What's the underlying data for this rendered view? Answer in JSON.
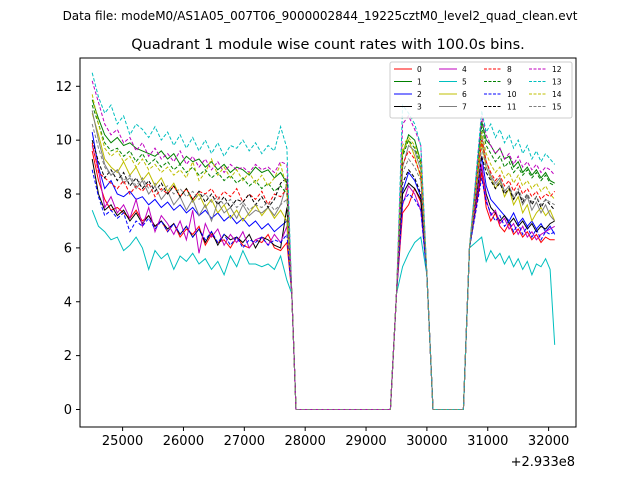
{
  "figure": {
    "suptitle": "Data file: modeM0/AS1A05_007T06_9000002844_19225cztM0_level2_quad_clean.evt"
  },
  "chart_data": {
    "type": "line",
    "title": "Quadrant 1 module wise count rates with 100.0s bins.",
    "xlabel": "",
    "ylabel": "",
    "x_offset_label": "+2.933e8",
    "xlim": [
      24300,
      32450
    ],
    "ylim": [
      -0.65,
      13.05
    ],
    "xticks": [
      25000,
      26000,
      27000,
      28000,
      29000,
      30000,
      31000,
      32000
    ],
    "yticks": [
      0,
      2,
      4,
      6,
      8,
      10,
      12
    ],
    "legend_position": "upper-right",
    "legend_columns": 4,
    "grid": false,
    "series": [
      {
        "name": "0",
        "color": "#ff0000",
        "dash": "solid",
        "seg1": [
          9.6,
          8.5,
          7.8,
          7.4,
          7.5,
          7.3,
          7.1,
          7.4,
          7.0,
          7.2,
          6.8,
          7.0,
          6.6,
          6.9,
          6.4,
          6.7,
          6.5,
          6.8,
          6.1,
          6.5,
          6.2,
          6.3,
          6.0,
          6.4,
          6.1,
          6.0,
          6.3,
          6.2,
          6.5,
          6.0,
          5.9,
          6.2
        ],
        "gap1": [
          7.3,
          7.6,
          8.2,
          7.7
        ],
        "gap2": [
          8.8,
          7.5,
          7.0,
          7.3,
          6.8,
          6.6,
          6.9,
          6.5,
          6.7,
          6.4,
          6.6,
          6.3,
          6.5,
          6.2,
          6.4,
          6.3,
          6.3
        ]
      },
      {
        "name": "1",
        "color": "#008000",
        "dash": "solid",
        "seg1": [
          11.5,
          10.8,
          10.2,
          9.9,
          10.1,
          9.8,
          9.9,
          9.7,
          9.6,
          9.5,
          9.4,
          9.6,
          9.3,
          9.5,
          9.1,
          9.4,
          9.2,
          9.3,
          9.0,
          9.2,
          8.9,
          9.1,
          8.8,
          9.0,
          8.9,
          8.7,
          9.0,
          8.8,
          8.9,
          8.6,
          8.8,
          8.4
        ],
        "gap1": [
          9.5,
          10.2,
          10.0,
          9.2
        ],
        "gap2": [
          10.7,
          10.0,
          9.8,
          9.5,
          9.7,
          9.3,
          9.4,
          9.0,
          9.2,
          8.8,
          9.0,
          8.7,
          8.9,
          8.6,
          8.8,
          8.5,
          8.4
        ]
      },
      {
        "name": "2",
        "color": "#0000ff",
        "dash": "solid",
        "seg1": [
          10.3,
          9.0,
          8.2,
          8.5,
          8.0,
          7.9,
          8.1,
          7.8,
          7.9,
          7.6,
          7.8,
          7.5,
          7.7,
          7.4,
          7.6,
          7.3,
          7.5,
          7.2,
          7.4,
          7.1,
          7.3,
          7.0,
          7.2,
          6.9,
          7.1,
          6.8,
          7.0,
          6.7,
          6.9,
          6.6,
          6.8,
          7.0
        ],
        "gap1": [
          8.1,
          8.8,
          8.5,
          7.9
        ],
        "gap2": [
          9.4,
          8.3,
          7.8,
          7.6,
          7.4,
          7.2,
          7.0,
          7.3,
          6.9,
          7.1,
          6.8,
          7.0,
          6.7,
          6.9,
          6.6,
          6.8,
          6.5
        ]
      },
      {
        "name": "3",
        "color": "#000000",
        "dash": "solid",
        "seg1": [
          9.3,
          8.0,
          7.4,
          7.6,
          7.2,
          7.4,
          7.0,
          7.3,
          6.9,
          7.2,
          6.8,
          7.0,
          6.7,
          6.9,
          6.5,
          6.8,
          6.4,
          6.7,
          6.2,
          6.6,
          6.1,
          6.5,
          6.3,
          6.4,
          6.2,
          6.5,
          6.0,
          6.4,
          6.3,
          6.1,
          6.0,
          7.5
        ],
        "gap1": [
          8.0,
          8.4,
          8.2,
          7.8
        ],
        "gap2": [
          9.0,
          8.0,
          7.5,
          7.3,
          7.0,
          7.2,
          6.9,
          7.1,
          6.8,
          7.0,
          6.7,
          6.9,
          6.6,
          6.8,
          6.7,
          6.9,
          7.0
        ]
      },
      {
        "name": "4",
        "color": "#bf00bf",
        "dash": "solid",
        "seg1": [
          9.8,
          8.9,
          7.5,
          7.9,
          7.3,
          7.6,
          7.1,
          7.8,
          6.8,
          7.5,
          6.6,
          7.2,
          6.9,
          6.5,
          7.0,
          6.3,
          7.4,
          5.8,
          6.9,
          6.4,
          6.7,
          6.1,
          6.5,
          6.2,
          6.6,
          6.0,
          6.3,
          6.4,
          6.1,
          6.5,
          6.2,
          6.8
        ],
        "gap1": [
          7.6,
          8.3,
          8.0,
          7.4
        ],
        "gap2": [
          9.1,
          7.8,
          7.2,
          7.4,
          6.9,
          7.1,
          6.7,
          6.9,
          6.5,
          6.8,
          6.4,
          6.6,
          6.3,
          6.5,
          6.6,
          6.7,
          6.8
        ]
      },
      {
        "name": "5",
        "color": "#00bfbf",
        "dash": "solid",
        "seg1": [
          7.4,
          6.8,
          6.6,
          6.3,
          6.4,
          5.9,
          6.1,
          6.4,
          6.0,
          5.2,
          5.9,
          5.6,
          5.8,
          5.2,
          5.7,
          5.5,
          5.8,
          5.4,
          5.6,
          5.2,
          5.5,
          5.0,
          5.7,
          5.3,
          5.9,
          5.4,
          5.4,
          5.3,
          5.4,
          5.2,
          5.7,
          4.8
        ],
        "gap1": [
          5.3,
          5.8,
          6.2,
          6.4
        ],
        "gap2": [
          6.4,
          5.5,
          5.9,
          5.6,
          5.8,
          5.4,
          5.7,
          5.3,
          5.6,
          5.2,
          5.5,
          5.0,
          5.4,
          5.3,
          5.6,
          5.2,
          2.4
        ]
      },
      {
        "name": "6",
        "color": "#bfbf00",
        "dash": "solid",
        "seg1": [
          11.0,
          10.2,
          9.3,
          9.0,
          8.8,
          9.2,
          8.7,
          9.0,
          8.5,
          8.8,
          8.3,
          8.6,
          8.1,
          8.4,
          7.9,
          8.2,
          7.7,
          8.0,
          7.5,
          7.8,
          7.3,
          7.6,
          7.1,
          7.4,
          7.0,
          7.3,
          7.6,
          7.2,
          7.5,
          7.1,
          7.4,
          7.0
        ],
        "gap1": [
          9.6,
          10.0,
          9.4,
          8.6
        ],
        "gap2": [
          9.9,
          9.0,
          8.6,
          8.2,
          8.5,
          7.9,
          8.2,
          7.6,
          7.9,
          7.3,
          7.6,
          7.0,
          7.3,
          7.5,
          7.2,
          7.4,
          7.0
        ]
      },
      {
        "name": "7",
        "color": "#7f7f7f",
        "dash": "solid",
        "seg1": [
          11.1,
          10.0,
          9.1,
          8.7,
          8.9,
          8.4,
          8.6,
          8.2,
          8.5,
          8.0,
          8.3,
          7.8,
          8.1,
          7.6,
          7.9,
          7.4,
          7.8,
          7.2,
          7.6,
          7.0,
          7.7,
          7.3,
          7.5,
          7.1,
          7.6,
          7.2,
          7.4,
          7.3,
          7.5,
          7.2,
          7.6,
          8.4
        ],
        "gap1": [
          9.0,
          9.8,
          9.6,
          8.9
        ],
        "gap2": [
          10.2,
          9.2,
          8.7,
          8.4,
          8.6,
          8.1,
          8.3,
          7.8,
          8.1,
          7.6,
          7.9,
          7.4,
          7.7,
          7.3,
          7.6,
          7.2,
          7.0
        ]
      },
      {
        "name": "8",
        "color": "#ff0000",
        "dash": "dashed",
        "seg1": [
          9.9,
          8.8,
          8.6,
          8.4,
          8.2,
          8.5,
          8.0,
          8.3,
          8.1,
          8.4,
          7.9,
          8.2,
          8.0,
          8.3,
          7.9,
          8.2,
          7.8,
          8.1,
          8.0,
          8.2,
          7.8,
          8.1,
          7.9,
          8.2,
          7.7,
          8.0,
          7.8,
          8.1,
          7.6,
          8.0,
          7.9,
          8.2
        ],
        "gap1": [
          9.1,
          9.6,
          9.3,
          8.7
        ],
        "gap2": [
          10.0,
          9.2,
          8.8,
          8.5,
          8.7,
          8.3,
          8.5,
          8.1,
          8.4,
          8.0,
          8.2,
          7.9,
          8.1,
          7.8,
          8.0,
          7.9,
          8.1
        ]
      },
      {
        "name": "9",
        "color": "#008000",
        "dash": "dashed",
        "seg1": [
          11.3,
          10.6,
          9.9,
          9.6,
          9.7,
          9.4,
          9.6,
          9.2,
          9.5,
          9.1,
          9.3,
          9.0,
          9.2,
          8.9,
          9.1,
          8.8,
          9.0,
          8.7,
          8.9,
          8.6,
          8.8,
          8.5,
          8.7,
          8.4,
          8.6,
          8.3,
          8.5,
          8.2,
          8.4,
          8.1,
          8.3,
          8.0
        ],
        "gap1": [
          9.4,
          10.0,
          9.7,
          9.1
        ],
        "gap2": [
          10.5,
          9.8,
          9.5,
          9.2,
          9.4,
          9.0,
          9.2,
          8.8,
          9.0,
          8.7,
          8.9,
          8.6,
          8.8,
          8.5,
          8.7,
          8.4,
          8.3
        ]
      },
      {
        "name": "10",
        "color": "#0000ff",
        "dash": "dashed",
        "seg1": [
          8.9,
          7.9,
          7.2,
          7.4,
          7.1,
          7.3,
          6.6,
          7.0,
          6.8,
          7.1,
          6.7,
          7.0,
          6.6,
          6.9,
          6.5,
          6.8,
          6.4,
          6.7,
          6.3,
          6.6,
          6.2,
          6.5,
          6.1,
          6.4,
          6.0,
          6.3,
          6.2,
          6.4,
          6.1,
          6.3,
          6.2,
          6.5
        ],
        "gap1": [
          7.7,
          8.0,
          7.8,
          7.4
        ],
        "gap2": [
          8.6,
          7.7,
          7.3,
          7.0,
          7.2,
          6.8,
          7.0,
          6.6,
          6.9,
          6.5,
          6.8,
          6.4,
          6.7,
          6.3,
          6.6,
          6.5,
          6.6
        ]
      },
      {
        "name": "11",
        "color": "#000000",
        "dash": "dashed",
        "seg1": [
          10.0,
          9.2,
          8.6,
          8.9,
          8.5,
          8.8,
          8.3,
          8.6,
          8.2,
          8.5,
          8.1,
          8.4,
          8.0,
          8.3,
          7.9,
          8.2,
          7.8,
          8.1,
          7.7,
          8.0,
          7.6,
          7.9,
          7.5,
          7.8,
          7.7,
          8.0,
          7.6,
          7.9,
          7.5,
          7.8,
          8.4,
          8.6
        ],
        "gap1": [
          8.4,
          8.9,
          8.6,
          8.0
        ],
        "gap2": [
          9.4,
          8.8,
          8.5,
          8.2,
          8.4,
          8.0,
          8.2,
          7.8,
          8.1,
          7.7,
          8.0,
          7.6,
          7.9,
          7.5,
          7.8,
          7.6,
          7.4
        ]
      },
      {
        "name": "12",
        "color": "#bf00bf",
        "dash": "dashed",
        "seg1": [
          12.2,
          11.4,
          10.6,
          10.2,
          10.4,
          9.9,
          10.1,
          9.6,
          9.9,
          9.4,
          9.7,
          9.3,
          9.5,
          9.2,
          9.6,
          9.1,
          9.4,
          9.0,
          9.3,
          8.9,
          9.2,
          8.8,
          9.1,
          8.9,
          9.0,
          8.8,
          9.1,
          8.9,
          9.0,
          8.8,
          9.2,
          9.1
        ],
        "gap1": [
          10.6,
          10.9,
          10.4,
          9.8
        ],
        "gap2": [
          10.9,
          10.2,
          9.8,
          9.5,
          9.7,
          9.3,
          9.5,
          9.1,
          9.4,
          9.0,
          9.2,
          8.9,
          9.1,
          8.8,
          9.0,
          8.9,
          8.7
        ]
      },
      {
        "name": "13",
        "color": "#00bfbf",
        "dash": "dashed",
        "seg1": [
          12.5,
          11.6,
          11.0,
          11.3,
          10.6,
          10.9,
          10.2,
          10.6,
          10.4,
          10.1,
          10.5,
          10.0,
          10.3,
          9.8,
          10.2,
          9.7,
          10.1,
          9.6,
          10.0,
          9.5,
          9.9,
          9.4,
          9.8,
          9.7,
          10.0,
          9.6,
          9.9,
          9.5,
          9.8,
          9.6,
          10.5,
          9.7
        ],
        "gap1": [
          11.3,
          11.0,
          10.6,
          9.8
        ],
        "gap2": [
          11.1,
          10.3,
          10.6,
          10.1,
          10.4,
          9.9,
          10.2,
          9.7,
          10.0,
          9.5,
          9.8,
          9.3,
          9.6,
          9.2,
          9.5,
          9.3,
          9.1
        ]
      },
      {
        "name": "14",
        "color": "#bfbf00",
        "dash": "dashed",
        "seg1": [
          11.7,
          10.6,
          9.7,
          9.4,
          9.6,
          9.2,
          9.4,
          9.0,
          9.3,
          8.9,
          9.1,
          8.8,
          9.0,
          8.7,
          8.9,
          8.6,
          9.2,
          8.5,
          8.8,
          9.3,
          8.7,
          9.0,
          8.6,
          8.9,
          8.5,
          8.8,
          8.4,
          8.7,
          8.3,
          8.6,
          9.1,
          8.2
        ],
        "gap1": [
          9.8,
          10.1,
          9.8,
          9.2
        ],
        "gap2": [
          10.3,
          9.5,
          9.1,
          8.8,
          9.0,
          8.6,
          8.8,
          8.4,
          8.7,
          8.3,
          8.5,
          8.2,
          8.4,
          8.1,
          8.3,
          8.0,
          7.8
        ]
      },
      {
        "name": "15",
        "color": "#7f7f7f",
        "dash": "dashed",
        "seg1": [
          10.6,
          9.7,
          9.0,
          8.7,
          8.9,
          8.5,
          8.7,
          8.3,
          8.6,
          8.2,
          8.4,
          8.1,
          8.3,
          8.0,
          8.2,
          7.9,
          8.1,
          7.8,
          8.0,
          7.7,
          7.9,
          7.6,
          7.8,
          7.5,
          7.7,
          7.4,
          7.6,
          7.5,
          7.7,
          7.4,
          7.6,
          7.8
        ],
        "gap1": [
          8.8,
          9.3,
          9.0,
          8.5
        ],
        "gap2": [
          9.7,
          9.0,
          8.6,
          8.3,
          8.5,
          8.1,
          8.3,
          7.9,
          8.2,
          7.8,
          8.0,
          7.7,
          7.9,
          7.6,
          7.8,
          7.7,
          7.6
        ]
      }
    ],
    "time_bins": {
      "seg1_start": 24500,
      "seg1_end": 27700,
      "gap1_start": 29600,
      "gap1_end": 29900,
      "gap2_start": 30900,
      "gap2_end": 32100,
      "drops_to_zero": [
        27850,
        29400,
        30100,
        30600
      ],
      "seg1_end_value": 4.3,
      "seg2_start_value": 4.3,
      "seg3_start_value": 6.0,
      "gap1_end_value": 5.0
    }
  }
}
